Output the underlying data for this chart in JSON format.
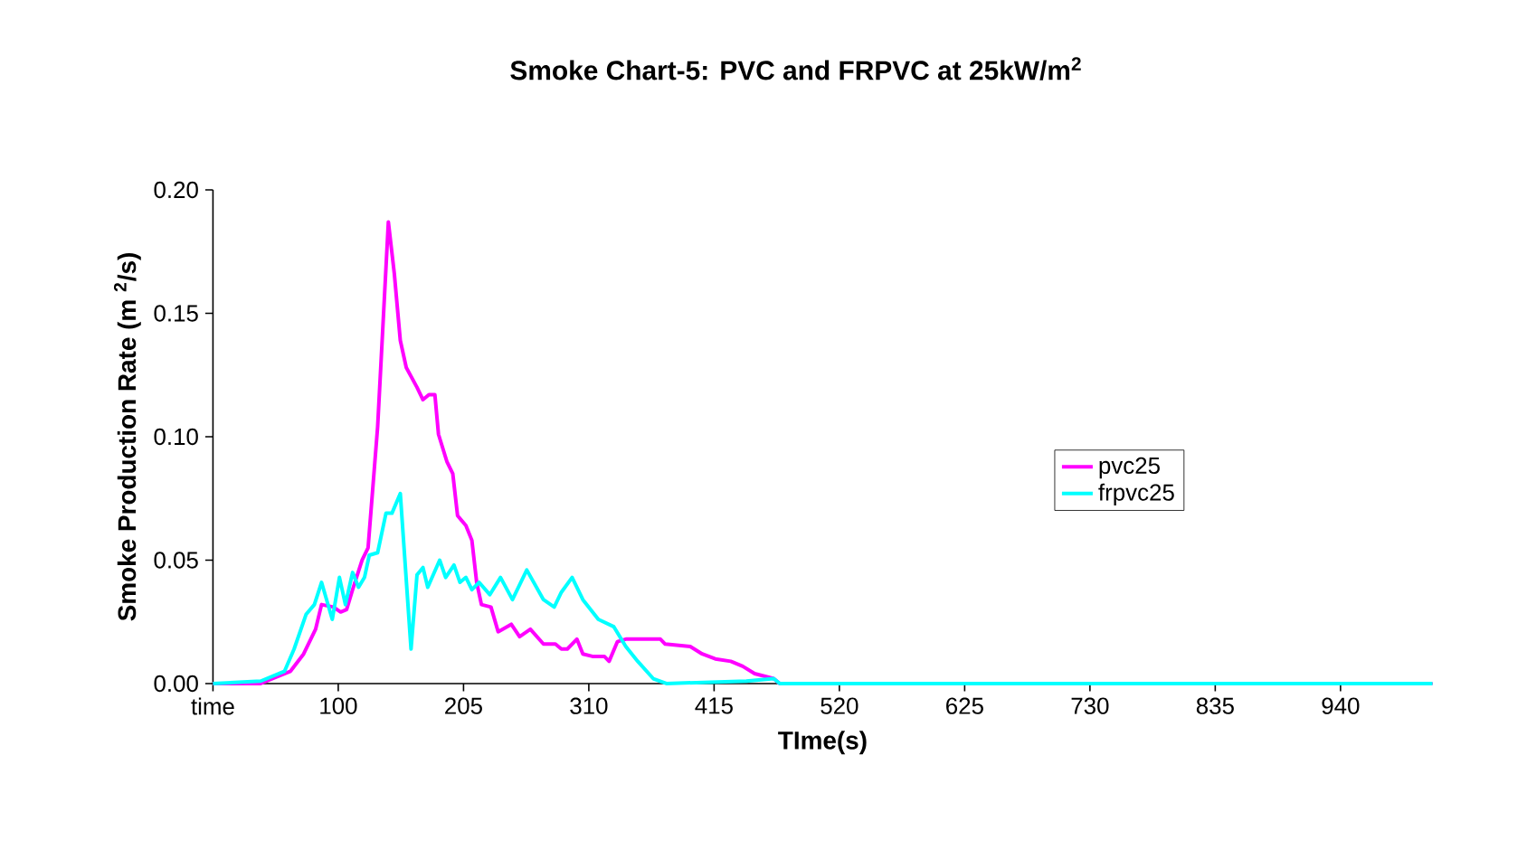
{
  "chart_data": {
    "type": "line",
    "title": "Smoke Chart-5: PVC and FRPVC at 25kW/m$^{2}$",
    "xlabel": "TIme(s)",
    "ylabel": "Smoke Production Rate (m $^{2}$/s)",
    "xlim": [
      -5,
      1017
    ],
    "ylim": [
      0,
      0.2
    ],
    "xticks": [
      {
        "value": -5,
        "label": "time"
      },
      100,
      205,
      310,
      415,
      520,
      625,
      730,
      835,
      940
    ],
    "yticks": [
      {
        "value": 0,
        "label": "0.00"
      },
      {
        "value": 0.05,
        "label": "0.05"
      },
      {
        "value": 0.1,
        "label": "0.10"
      },
      {
        "value": 0.15,
        "label": "0.15"
      },
      {
        "value": 0.2,
        "label": "0.20"
      }
    ],
    "legend": "right",
    "series": [
      {
        "name": "pvc25",
        "color": "#ff00ff",
        "x": [
          -5,
          35,
          45,
          60,
          71,
          81,
          86,
          96,
          102,
          107,
          112,
          120,
          125,
          133,
          142,
          147,
          152,
          157,
          166,
          171,
          176,
          181,
          184,
          191,
          196,
          200,
          207,
          212,
          216,
          220,
          228,
          234,
          245,
          252,
          261,
          272,
          282,
          287,
          292,
          300,
          305,
          313,
          323,
          327,
          334,
          341,
          370,
          374,
          395,
          405,
          416,
          429,
          439,
          449,
          465,
          470,
          1017
        ],
        "values": [
          0,
          0,
          0.002,
          0.005,
          0.012,
          0.022,
          0.032,
          0.031,
          0.029,
          0.03,
          0.038,
          0.05,
          0.055,
          0.104,
          0.187,
          0.166,
          0.139,
          0.128,
          0.12,
          0.115,
          0.117,
          0.117,
          0.101,
          0.09,
          0.085,
          0.068,
          0.064,
          0.058,
          0.041,
          0.032,
          0.031,
          0.021,
          0.024,
          0.019,
          0.022,
          0.016,
          0.016,
          0.014,
          0.014,
          0.018,
          0.012,
          0.011,
          0.011,
          0.009,
          0.017,
          0.018,
          0.018,
          0.016,
          0.015,
          0.012,
          0.01,
          0.009,
          0.007,
          0.004,
          0.002,
          0,
          0
        ]
      },
      {
        "name": "frpvc25",
        "color": "#00ffff",
        "x": [
          -5,
          35,
          55,
          63,
          73,
          80,
          86,
          95,
          101,
          106,
          112,
          117,
          122,
          126,
          133,
          140,
          145,
          152,
          161,
          166,
          171,
          175,
          185,
          190,
          197,
          202,
          207,
          212,
          218,
          227,
          236,
          246,
          258,
          272,
          281,
          287,
          296,
          305,
          318,
          331,
          341,
          351,
          364,
          375,
          442,
          465,
          470,
          1017
        ],
        "values": [
          0,
          0.001,
          0.005,
          0.014,
          0.028,
          0.032,
          0.041,
          0.026,
          0.043,
          0.032,
          0.045,
          0.039,
          0.043,
          0.052,
          0.053,
          0.069,
          0.069,
          0.077,
          0.014,
          0.044,
          0.047,
          0.039,
          0.05,
          0.043,
          0.048,
          0.041,
          0.043,
          0.038,
          0.041,
          0.036,
          0.043,
          0.034,
          0.046,
          0.034,
          0.031,
          0.037,
          0.043,
          0.034,
          0.026,
          0.023,
          0.015,
          0.009,
          0.002,
          0,
          0.001,
          0.002,
          0,
          0
        ]
      }
    ]
  }
}
